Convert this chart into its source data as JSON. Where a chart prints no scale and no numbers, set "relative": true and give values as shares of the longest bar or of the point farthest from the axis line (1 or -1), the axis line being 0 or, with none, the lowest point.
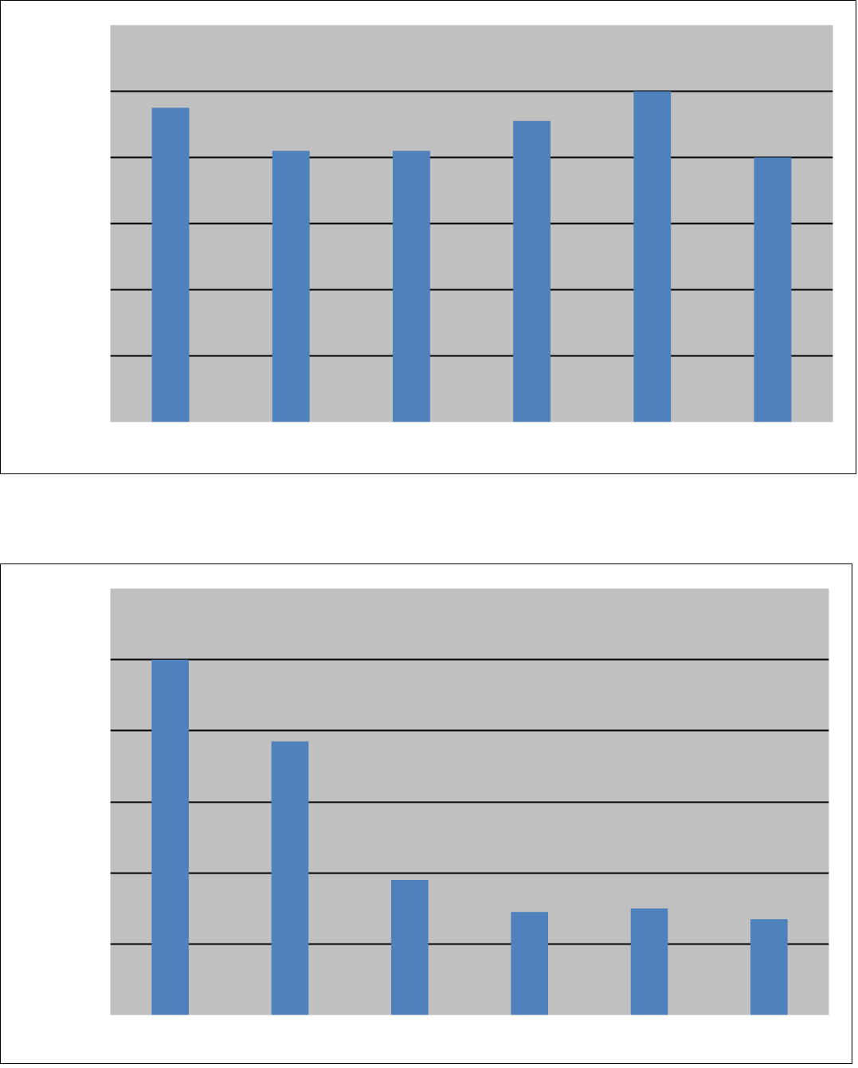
{
  "chart_data": [
    {
      "type": "bar",
      "categories": [
        null,
        null,
        null,
        null,
        null,
        null
      ],
      "values": [
        0.95,
        0.82,
        0.82,
        0.91,
        1,
        0.8
      ],
      "color": "#4f81bd",
      "relative": true,
      "grid": "y"
    },
    {
      "type": "bar",
      "categories": [
        null,
        null,
        null,
        null,
        null,
        null
      ],
      "values": [
        1,
        0.77,
        0.38,
        0.29,
        0.3,
        0.27
      ],
      "color": "#4f81bd",
      "relative": true,
      "grid": "y"
    }
  ]
}
